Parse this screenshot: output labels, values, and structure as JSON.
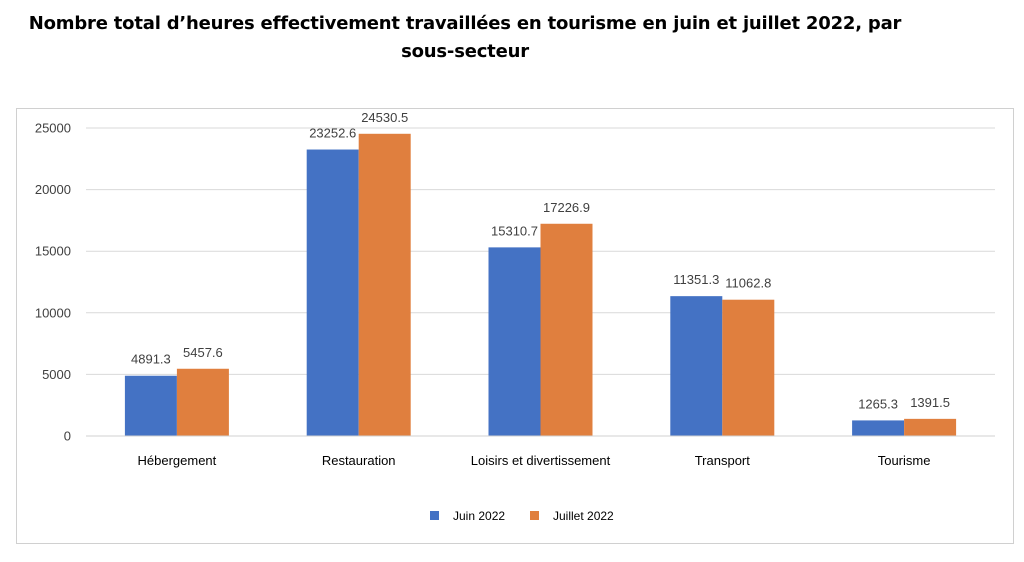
{
  "title_line1": "Nombre total d’heures effectivement travaillées en tourisme en juin et juillet  2022, par",
  "title_line2": "sous-secteur",
  "colors": {
    "series1": "#4472C4",
    "series2": "#E07F3E",
    "grid": "#d9d9d9"
  },
  "chart_data": {
    "type": "bar",
    "categories": [
      "Hébergement",
      "Restauration",
      "Loisirs et divertissement",
      "Transport",
      "Tourisme"
    ],
    "series": [
      {
        "name": "Juin 2022",
        "values": [
          4891.3,
          23252.6,
          15310.7,
          11351.3,
          1265.3
        ]
      },
      {
        "name": "Juillet 2022",
        "values": [
          5457.6,
          24530.5,
          17226.9,
          11062.8,
          1391.5
        ]
      }
    ],
    "ylim": [
      0,
      25000
    ],
    "yticks": [
      0,
      5000,
      10000,
      15000,
      20000,
      25000
    ],
    "xlabel": "",
    "ylabel": "",
    "grid": true,
    "legend": "bottom"
  }
}
